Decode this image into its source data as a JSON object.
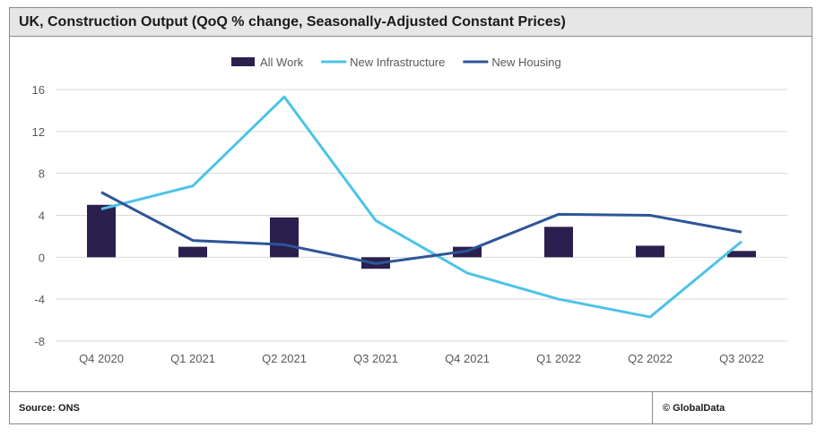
{
  "header": {
    "title": "UK, Construction Output (QoQ % change, Seasonally-Adjusted Constant Prices)"
  },
  "footer": {
    "source": "Source:  ONS",
    "brand": "© GlobalData"
  },
  "colors": {
    "all_work": "#2b1f4e",
    "new_infrastructure": "#4cc3e8",
    "new_housing": "#2f5597",
    "grid": "#d9d9d9"
  },
  "chart_data": {
    "type": "bar",
    "categories": [
      "Q4 2020",
      "Q1 2021",
      "Q2 2021",
      "Q3 2021",
      "Q4 2021",
      "Q1 2022",
      "Q2 2022",
      "Q3 2022"
    ],
    "series": [
      {
        "name": "All Work",
        "type": "bar",
        "values": [
          5.0,
          1.0,
          3.8,
          -1.1,
          1.0,
          2.9,
          1.1,
          0.6
        ]
      },
      {
        "name": "New Infrastructure",
        "type": "line",
        "values": [
          4.6,
          6.8,
          15.3,
          3.5,
          -1.5,
          -4.0,
          -5.7,
          1.5
        ]
      },
      {
        "name": "New Housing",
        "type": "line",
        "values": [
          6.2,
          1.6,
          1.2,
          -0.6,
          0.6,
          4.1,
          4.0,
          2.4
        ]
      }
    ],
    "yticks": [
      "16",
      "12",
      "8",
      "4",
      "0",
      "-4",
      "-8"
    ],
    "ylim": [
      -8,
      16
    ],
    "grid": true,
    "legend": "top-center"
  }
}
